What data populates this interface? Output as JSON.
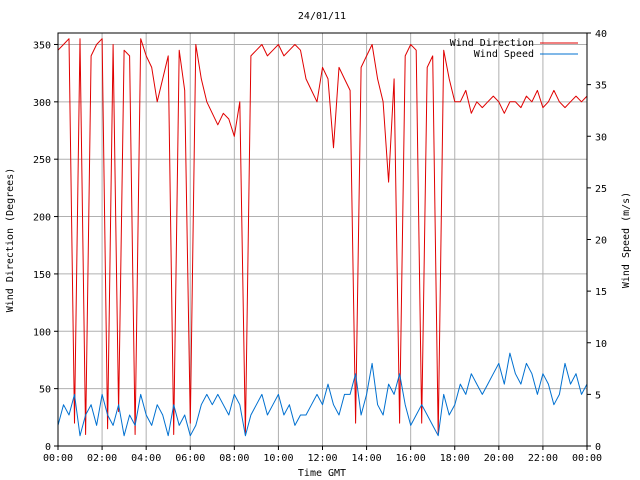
{
  "chart_data": {
    "type": "line",
    "title": "24/01/11",
    "xlabel": "Time GMT",
    "ylabel_left": "Wind Direction (Degrees)",
    "ylabel_right": "Wind Speed (m/s)",
    "x_range_hours": [
      0,
      24
    ],
    "x_ticks": [
      "00:00",
      "02:00",
      "04:00",
      "06:00",
      "08:00",
      "10:00",
      "12:00",
      "14:00",
      "16:00",
      "18:00",
      "20:00",
      "22:00",
      "00:00"
    ],
    "ylim_left": [
      0,
      360
    ],
    "y_ticks_left": [
      "0",
      "50",
      "100",
      "150",
      "200",
      "250",
      "300",
      "350"
    ],
    "ylim_right": [
      0,
      40
    ],
    "y_ticks_right": [
      "0",
      "5",
      "10",
      "15",
      "20",
      "25",
      "30",
      "35",
      "40"
    ],
    "grid": true,
    "legend_position": "top-right",
    "series": [
      {
        "name": "Wind Direction",
        "axis": "left",
        "color": "#e00000",
        "x": [
          0,
          0.25,
          0.5,
          0.75,
          1,
          1.25,
          1.5,
          1.75,
          2,
          2.25,
          2.5,
          2.75,
          3,
          3.25,
          3.5,
          3.75,
          4,
          4.25,
          4.5,
          4.75,
          5,
          5.25,
          5.5,
          5.75,
          6,
          6.25,
          6.5,
          6.75,
          7,
          7.25,
          7.5,
          7.75,
          8,
          8.25,
          8.5,
          8.75,
          9,
          9.25,
          9.5,
          9.75,
          10,
          10.25,
          10.5,
          10.75,
          11,
          11.25,
          11.5,
          11.75,
          12,
          12.25,
          12.5,
          12.75,
          13,
          13.25,
          13.5,
          13.75,
          14,
          14.25,
          14.5,
          14.75,
          15,
          15.25,
          15.5,
          15.75,
          16,
          16.25,
          16.5,
          16.75,
          17,
          17.25,
          17.5,
          17.75,
          18,
          18.25,
          18.5,
          18.75,
          19,
          19.25,
          19.5,
          19.75,
          20,
          20.25,
          20.5,
          20.75,
          21,
          21.25,
          21.5,
          21.75,
          22,
          22.25,
          22.5,
          22.75,
          23,
          23.25,
          23.5,
          23.75,
          24
        ],
        "values": [
          345,
          350,
          355,
          20,
          355,
          10,
          340,
          350,
          355,
          15,
          350,
          30,
          345,
          340,
          10,
          355,
          340,
          330,
          300,
          320,
          340,
          10,
          345,
          310,
          20,
          350,
          320,
          300,
          290,
          280,
          290,
          285,
          270,
          300,
          10,
          340,
          345,
          350,
          340,
          345,
          350,
          340,
          345,
          350,
          345,
          320,
          310,
          300,
          330,
          320,
          260,
          330,
          320,
          310,
          20,
          330,
          340,
          350,
          320,
          300,
          230,
          320,
          20,
          340,
          350,
          345,
          20,
          330,
          340,
          10,
          345,
          320,
          300,
          300,
          310,
          290,
          300,
          295,
          300,
          305,
          300,
          290,
          300,
          300,
          295,
          305,
          300,
          310,
          295,
          300,
          310,
          300,
          295,
          300,
          305,
          300,
          305
        ]
      },
      {
        "name": "Wind Speed",
        "axis": "right",
        "color": "#0070d0",
        "x": [
          0,
          0.25,
          0.5,
          0.75,
          1,
          1.25,
          1.5,
          1.75,
          2,
          2.25,
          2.5,
          2.75,
          3,
          3.25,
          3.5,
          3.75,
          4,
          4.25,
          4.5,
          4.75,
          5,
          5.25,
          5.5,
          5.75,
          6,
          6.25,
          6.5,
          6.75,
          7,
          7.25,
          7.5,
          7.75,
          8,
          8.25,
          8.5,
          8.75,
          9,
          9.25,
          9.5,
          9.75,
          10,
          10.25,
          10.5,
          10.75,
          11,
          11.25,
          11.5,
          11.75,
          12,
          12.25,
          12.5,
          12.75,
          13,
          13.25,
          13.5,
          13.75,
          14,
          14.25,
          14.5,
          14.75,
          15,
          15.25,
          15.5,
          15.75,
          16,
          16.25,
          16.5,
          16.75,
          17,
          17.25,
          17.5,
          17.75,
          18,
          18.25,
          18.5,
          18.75,
          19,
          19.25,
          19.5,
          19.75,
          20,
          20.25,
          20.5,
          20.75,
          21,
          21.25,
          21.5,
          21.75,
          22,
          22.25,
          22.5,
          22.75,
          23,
          23.25,
          23.5,
          23.75,
          24
        ],
        "values": [
          2,
          4,
          3,
          5,
          1,
          3,
          4,
          2,
          5,
          3,
          2,
          4,
          1,
          3,
          2,
          5,
          3,
          2,
          4,
          3,
          1,
          4,
          2,
          3,
          1,
          2,
          4,
          5,
          4,
          5,
          4,
          3,
          5,
          4,
          1,
          3,
          4,
          5,
          3,
          4,
          5,
          3,
          4,
          2,
          3,
          3,
          4,
          5,
          4,
          6,
          4,
          3,
          5,
          5,
          7,
          3,
          5,
          8,
          4,
          3,
          6,
          5,
          7,
          4,
          2,
          3,
          4,
          3,
          2,
          1,
          5,
          3,
          4,
          6,
          5,
          7,
          6,
          5,
          6,
          7,
          8,
          6,
          9,
          7,
          6,
          8,
          7,
          5,
          7,
          6,
          4,
          5,
          8,
          6,
          7,
          5,
          6
        ]
      }
    ]
  }
}
